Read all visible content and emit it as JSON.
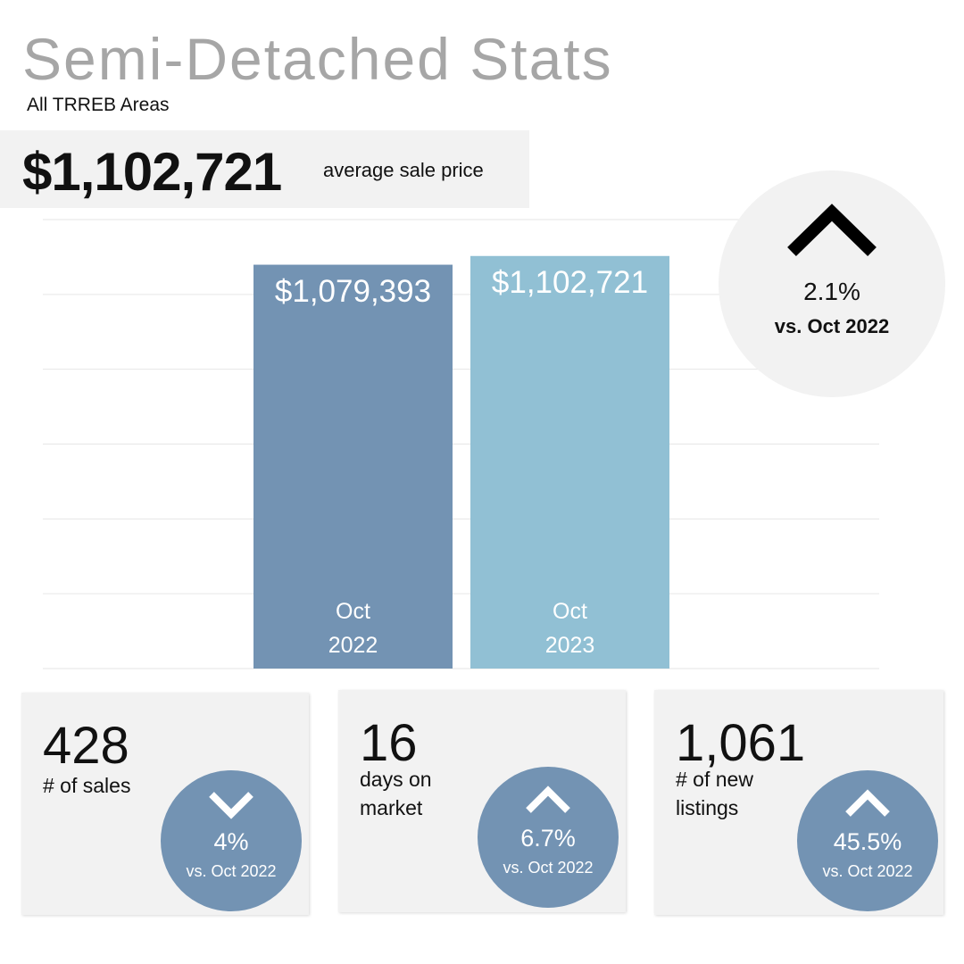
{
  "header": {
    "title": "Semi-Detached Stats",
    "subtitle": "All TRREB Areas",
    "headline_value": "$1,102,721",
    "headline_label": "average sale price"
  },
  "chart_data": {
    "type": "bar",
    "categories": [
      "Oct 2022",
      "Oct 2023"
    ],
    "values": [
      1079393,
      1102721
    ],
    "value_labels": [
      "$1,079,393",
      "$1,102,721"
    ],
    "colors": [
      "#7393b3",
      "#91c0d4"
    ],
    "ylim": [
      0,
      1200000
    ],
    "yticks": [
      0,
      200000,
      400000,
      600000,
      800000,
      1000000,
      1200000
    ],
    "grid": true
  },
  "change": {
    "value": "2.1%",
    "comparison": "vs. Oct 2022",
    "direction": "up"
  },
  "stats": [
    {
      "value": "428",
      "label": "# of sales",
      "change": "4%",
      "comparison": "vs. Oct 2022",
      "direction": "down"
    },
    {
      "value": "16",
      "label": "days on market",
      "change": "6.7%",
      "comparison": "vs. Oct 2022",
      "direction": "up"
    },
    {
      "value": "1,061",
      "label": "# of new listings",
      "change": "45.5%",
      "comparison": "vs. Oct 2022",
      "direction": "up"
    }
  ]
}
